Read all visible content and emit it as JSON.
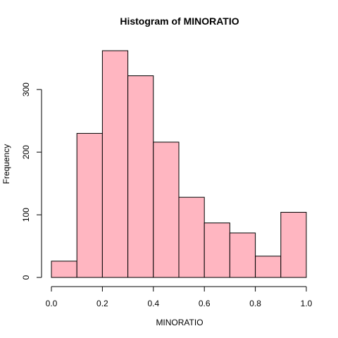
{
  "chart_data": {
    "type": "bar",
    "title": "Histogram of MINORATIO",
    "xlabel": "MINORATIO",
    "ylabel": "Frequency",
    "bin_edges": [
      0.0,
      0.1,
      0.2,
      0.3,
      0.4,
      0.5,
      0.6,
      0.7,
      0.8,
      0.9,
      1.0
    ],
    "values": [
      26,
      230,
      362,
      322,
      216,
      128,
      87,
      71,
      34,
      104
    ],
    "xlim": [
      0,
      1
    ],
    "ylim": [
      0,
      362
    ],
    "x_ticks": [
      0.0,
      0.2,
      0.4,
      0.6,
      0.8,
      1.0
    ],
    "x_tick_labels": [
      "0.0",
      "0.2",
      "0.4",
      "0.6",
      "0.8",
      "1.0"
    ],
    "y_ticks": [
      0,
      100,
      200,
      300
    ],
    "y_tick_labels": [
      "0",
      "100",
      "200",
      "300"
    ],
    "bar_color": "#ffb6c1",
    "grid": false
  }
}
